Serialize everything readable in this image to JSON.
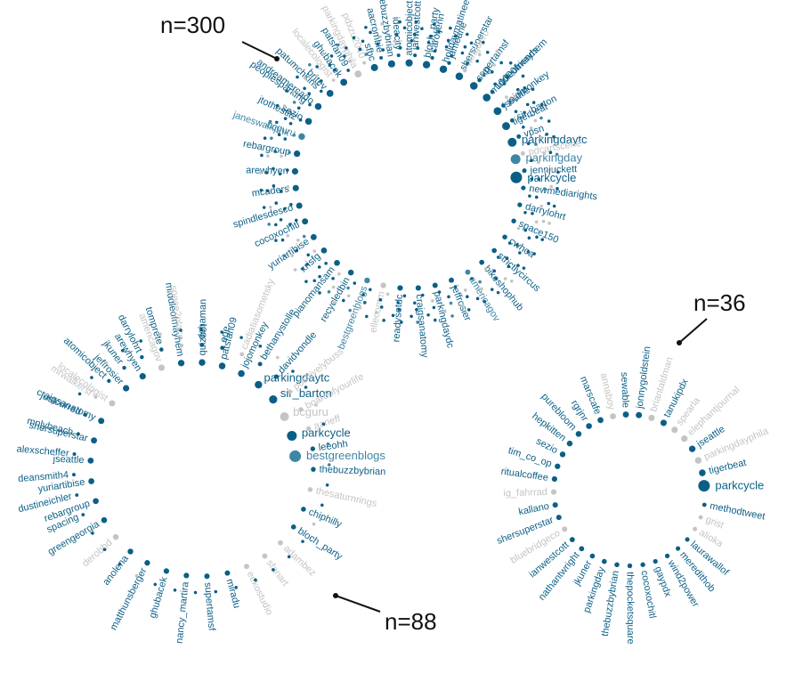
{
  "colors": {
    "dark": "#0b5f86",
    "mid": "#3f86a6",
    "light": "#c4c4c4"
  },
  "callouts": [
    {
      "text": "n=300"
    },
    {
      "text": "n=36"
    },
    {
      "text": "n=88"
    }
  ],
  "network_300": {
    "n": 300,
    "highlighted": [
      {
        "name": "parkcycle",
        "tone": "dark"
      },
      {
        "name": "parkingday",
        "tone": "mid"
      },
      {
        "name": "parkingdaytc",
        "tone": "dark"
      }
    ],
    "labels": [
      {
        "name": "tigerbeat",
        "tone": "dark"
      },
      {
        "name": "jseattle",
        "tone": "dark"
      },
      {
        "name": "middleofmayhem",
        "tone": "dark"
      },
      {
        "name": "supertamsf",
        "tone": "dark"
      },
      {
        "name": "shersuperstar",
        "tone": "dark"
      },
      {
        "name": "holidaymatinee",
        "tone": "dark"
      },
      {
        "name": "bloch_party",
        "tone": "dark"
      },
      {
        "name": "atomicobject",
        "tone": "dark"
      },
      {
        "name": "thebuzzbybrian",
        "tone": "dark"
      },
      {
        "name": "sfbc",
        "tone": "dark"
      },
      {
        "name": "parkingdayphila",
        "tone": "light"
      },
      {
        "name": "ghubacek",
        "tone": "dark"
      },
      {
        "name": "britev",
        "tone": "dark"
      },
      {
        "name": "andreamercado",
        "tone": "dark"
      },
      {
        "name": "sezio",
        "tone": "dark"
      },
      {
        "name": "bcguru",
        "tone": "mid"
      },
      {
        "name": "rebargroup",
        "tone": "dark"
      },
      {
        "name": "arewhyen",
        "tone": "dark"
      },
      {
        "name": "mcaders",
        "tone": "dark"
      },
      {
        "name": "spindlesdesco",
        "tone": "dark"
      },
      {
        "name": "cocoxochitl",
        "tone": "dark"
      },
      {
        "name": "yuriartibise",
        "tone": "dark"
      },
      {
        "name": "xrisfg",
        "tone": "dark"
      },
      {
        "name": "pianomansam",
        "tone": "dark"
      },
      {
        "name": "recycledbin",
        "tone": "dark"
      },
      {
        "name": "bestgreenblogs",
        "tone": "mid"
      },
      {
        "name": "ellecomm",
        "tone": "light"
      },
      {
        "name": "readysetdc",
        "tone": "dark"
      },
      {
        "name": "craigsanatomy",
        "tone": "dark"
      },
      {
        "name": "parkingdaydc",
        "tone": "dark"
      },
      {
        "name": "jeffrosier",
        "tone": "dark"
      },
      {
        "name": "americagov",
        "tone": "mid"
      },
      {
        "name": "bikeshophub",
        "tone": "dark"
      },
      {
        "name": "strictlycircus",
        "tone": "dark"
      },
      {
        "name": "cwhoa",
        "tone": "dark"
      },
      {
        "name": "space150",
        "tone": "dark"
      },
      {
        "name": "darrylohrt",
        "tone": "dark"
      },
      {
        "name": "newmediarights",
        "tone": "dark"
      },
      {
        "name": "jennjuckett",
        "tone": "dark"
      },
      {
        "name": "pdcartscene",
        "tone": "light"
      },
      {
        "name": "vpsn",
        "tone": "dark"
      },
      {
        "name": "sir_barton",
        "tone": "dark"
      },
      {
        "name": "jojomonkey",
        "tone": "dark"
      },
      {
        "name": "10000friends",
        "tone": "dark"
      },
      {
        "name": "kg",
        "tone": "dark"
      },
      {
        "name": "winguero",
        "tone": "light"
      },
      {
        "name": "jameane",
        "tone": "dark"
      },
      {
        "name": "caroljenn",
        "tone": "dark"
      },
      {
        "name": "ianwestcott",
        "tone": "dark"
      },
      {
        "name": "ideacity",
        "tone": "dark"
      },
      {
        "name": "aacrombie",
        "tone": "dark"
      },
      {
        "name": "pdxzu2040",
        "tone": "light"
      },
      {
        "name": "patsfan09",
        "tone": "dark"
      },
      {
        "name": "localecologist",
        "tone": "light"
      },
      {
        "name": "patumchkins",
        "tone": "dark"
      },
      {
        "name": "peoplesparking",
        "tone": "dark"
      },
      {
        "name": "jtothestitz",
        "tone": "dark"
      },
      {
        "name": "janeswalkphx",
        "tone": "mid"
      }
    ]
  },
  "network_88": {
    "n": 88,
    "highlighted": [
      {
        "name": "bestgreenblogs",
        "tone": "mid"
      },
      {
        "name": "parkcycle",
        "tone": "dark"
      },
      {
        "name": "bcguru",
        "tone": "light"
      },
      {
        "name": "sir_barton",
        "tone": "dark"
      },
      {
        "name": "parkingdaytc",
        "tone": "dark"
      }
    ],
    "labels": [
      {
        "name": "jojomonkey",
        "tone": "dark"
      },
      {
        "name": "patsfan09",
        "tone": "dark"
      },
      {
        "name": "quizbot",
        "tone": "dark"
      },
      {
        "name": "middleofmayhem",
        "tone": "dark"
      },
      {
        "name": "americagov",
        "tone": "light"
      },
      {
        "name": "arewhyen",
        "tone": "dark"
      },
      {
        "name": "jeffrosier",
        "tone": "dark"
      },
      {
        "name": "localecologist",
        "tone": "light"
      },
      {
        "name": "craigsanatomy",
        "tone": "dark"
      },
      {
        "name": "shersuperstar",
        "tone": "dark"
      },
      {
        "name": "jseattle",
        "tone": "dark"
      },
      {
        "name": "yuriartibise",
        "tone": "dark"
      },
      {
        "name": "rebargroup",
        "tone": "dark"
      },
      {
        "name": "greengeorgia",
        "tone": "dark"
      },
      {
        "name": "derobbd",
        "tone": "light"
      },
      {
        "name": "anolena",
        "tone": "dark"
      },
      {
        "name": "matthunsberger",
        "tone": "dark"
      },
      {
        "name": "ghubacek",
        "tone": "dark"
      },
      {
        "name": "nancy_martira",
        "tone": "dark"
      },
      {
        "name": "supertamsf",
        "tone": "dark"
      },
      {
        "name": "miradu",
        "tone": "dark"
      },
      {
        "name": "eekostudio",
        "tone": "light"
      },
      {
        "name": "sfanart",
        "tone": "light"
      },
      {
        "name": "adambez",
        "tone": "light"
      },
      {
        "name": "bloch_party",
        "tone": "dark"
      },
      {
        "name": "chiphilly",
        "tone": "dark"
      },
      {
        "name": "thesaturnrings",
        "tone": "light"
      },
      {
        "name": "thebuzzbybrian",
        "tone": "dark"
      },
      {
        "name": "leeohh",
        "tone": "dark"
      },
      {
        "name": "aaneff",
        "tone": "light"
      },
      {
        "name": "boardofyourlife",
        "tone": "light"
      },
      {
        "name": "positivelybuss",
        "tone": "light"
      },
      {
        "name": "davidvondle",
        "tone": "dark"
      },
      {
        "name": "bethanystolle",
        "tone": "dark"
      },
      {
        "name": "cadiatiasometsky",
        "tone": "light"
      },
      {
        "name": "ege",
        "tone": "dark"
      },
      {
        "name": "dshaman",
        "tone": "dark"
      },
      {
        "name": "space2place",
        "tone": "light"
      },
      {
        "name": "tomprete",
        "tone": "dark"
      },
      {
        "name": "darrylohrt",
        "tone": "dark"
      },
      {
        "name": "jkuner",
        "tone": "dark"
      },
      {
        "name": "atomicobject",
        "tone": "dark"
      },
      {
        "name": "mrwalkersf",
        "tone": "light"
      },
      {
        "name": "justcurred",
        "tone": "dark"
      },
      {
        "name": "mnlybeach",
        "tone": "dark"
      },
      {
        "name": "alexscheffer",
        "tone": "dark"
      },
      {
        "name": "deansmith4",
        "tone": "dark"
      },
      {
        "name": "dustineichler",
        "tone": "dark"
      },
      {
        "name": "spacing",
        "tone": "dark"
      }
    ]
  },
  "network_36": {
    "n": 36,
    "highlighted": [
      {
        "name": "parkcycle",
        "tone": "dark"
      }
    ],
    "labels": [
      {
        "name": "tigerbeat",
        "tone": "dark"
      },
      {
        "name": "parkingdayphila",
        "tone": "light"
      },
      {
        "name": "jseattle",
        "tone": "dark"
      },
      {
        "name": "elephantjournal",
        "tone": "light"
      },
      {
        "name": "spearla",
        "tone": "light"
      },
      {
        "name": "tanukipdx",
        "tone": "dark"
      },
      {
        "name": "briantaldman",
        "tone": "light"
      },
      {
        "name": "jonnygoldstein",
        "tone": "dark"
      },
      {
        "name": "sewable",
        "tone": "dark"
      },
      {
        "name": "annaboy",
        "tone": "light"
      },
      {
        "name": "marscafe",
        "tone": "dark"
      },
      {
        "name": "rgrjnr",
        "tone": "dark"
      },
      {
        "name": "purebloom",
        "tone": "dark"
      },
      {
        "name": "hepkitten",
        "tone": "dark"
      },
      {
        "name": "sezio",
        "tone": "dark"
      },
      {
        "name": "tim_co_op",
        "tone": "dark"
      },
      {
        "name": "ritualcoffee",
        "tone": "dark"
      },
      {
        "name": "ig_fahrrad",
        "tone": "light"
      },
      {
        "name": "kallano",
        "tone": "dark"
      },
      {
        "name": "shersuperstar",
        "tone": "dark"
      },
      {
        "name": "bluebridgeco",
        "tone": "light"
      },
      {
        "name": "ianwestcott",
        "tone": "dark"
      },
      {
        "name": "nathantwright",
        "tone": "dark"
      },
      {
        "name": "jkuner",
        "tone": "dark"
      },
      {
        "name": "parkingday",
        "tone": "dark"
      },
      {
        "name": "thebuzzbybrian",
        "tone": "dark"
      },
      {
        "name": "thepocketsquare",
        "tone": "dark"
      },
      {
        "name": "cocoxochitl",
        "tone": "dark"
      },
      {
        "name": "gaypdx",
        "tone": "dark"
      },
      {
        "name": "wind2power",
        "tone": "dark"
      },
      {
        "name": "meredithob",
        "tone": "dark"
      },
      {
        "name": "laurawallof",
        "tone": "dark"
      },
      {
        "name": "alioka",
        "tone": "light"
      },
      {
        "name": "grist",
        "tone": "light"
      },
      {
        "name": "methodtweet",
        "tone": "dark"
      }
    ]
  }
}
